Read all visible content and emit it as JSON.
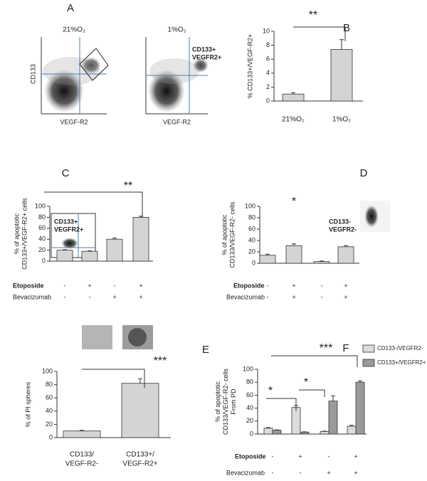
{
  "chart_data": [
    {
      "type": "flow",
      "label": "A",
      "ylabel": "CD133",
      "xlabel": "VEGF-R2",
      "plots": [
        {
          "title": "21%O₂"
        },
        {
          "title": "1%O₂",
          "gate_label": "CD133+\nVEGFR2+"
        }
      ]
    },
    {
      "type": "bar",
      "label": "B",
      "ylabel": "% CD133+/VEGF-R2+",
      "categories": [
        "21%O₂",
        "1%O₂"
      ],
      "series": [
        {
          "values": [
            1,
            7.4
          ],
          "errors": [
            0.2,
            1.4
          ],
          "color": "#d4d4d4"
        }
      ],
      "ylim": [
        0,
        10
      ],
      "yticks": [
        0,
        2,
        4,
        6,
        8,
        10
      ],
      "annotations": [
        "**"
      ]
    },
    {
      "type": "bar",
      "label": "C",
      "ylabel": "% of apoptotic\nCD133+/VEGF-R2+  cells",
      "inset_label": "CD133+\nVEGFR2+",
      "series": [
        {
          "values": [
            20,
            18,
            40,
            80
          ],
          "errors": [
            1,
            1,
            2,
            2
          ],
          "color": "#d4d4d4"
        }
      ],
      "ylim": [
        0,
        100
      ],
      "yticks": [
        0,
        20,
        40,
        60,
        80,
        100
      ],
      "treatments": [
        {
          "name": "Etoposide",
          "signs": [
            "-",
            "+",
            "-",
            "+"
          ]
        },
        {
          "name": "Bevacizumab",
          "signs": [
            "-",
            "-",
            "+",
            "+"
          ]
        }
      ],
      "annotations": [
        "**"
      ]
    },
    {
      "type": "bar",
      "label": "D",
      "ylabel": "% of apoptotic\nCD133/VEGF-R2-  cells",
      "inset_label": "CD133-\nVEGFR2-",
      "series": [
        {
          "values": [
            14,
            31,
            3,
            29
          ],
          "errors": [
            2,
            3,
            1,
            2
          ],
          "color": "#d4d4d4"
        }
      ],
      "ylim": [
        0,
        100
      ],
      "yticks": [
        0,
        20,
        40,
        60,
        80,
        100
      ],
      "treatments": [
        {
          "name": "Etoposide",
          "signs": [
            "-",
            "+",
            "-",
            "+"
          ]
        },
        {
          "name": "Bevacizumab",
          "signs": [
            "-",
            "+",
            "-",
            "+"
          ]
        }
      ],
      "annotations": [
        "*"
      ]
    },
    {
      "type": "bar",
      "label": "E",
      "ylabel": "% of PI  spheres",
      "categories": [
        "CD133/\nVEGF-R2-",
        "CD133+/\nVEGF-R2+"
      ],
      "series": [
        {
          "values": [
            10,
            82
          ],
          "errors": [
            1,
            7
          ],
          "color": "#d4d4d4"
        }
      ],
      "ylim": [
        0,
        100
      ],
      "yticks": [
        0,
        20,
        40,
        60,
        80,
        100
      ],
      "annotations": [
        "***"
      ]
    },
    {
      "type": "bar",
      "label": "F",
      "ylabel": "% of apoptotic\nCD133/VEGF-R2-  cells\nFrom PD",
      "series": [
        {
          "name": "CD133-/VEGFR2-",
          "values": [
            9,
            41,
            4,
            12
          ],
          "errors": [
            1,
            3,
            0.5,
            1.5
          ],
          "color": "#dcdcdc"
        },
        {
          "name": "CD133+/VEGFR2+",
          "values": [
            6,
            3,
            51,
            80
          ],
          "errors": [
            0.5,
            0.5,
            8,
            2
          ],
          "color": "#9a9a9a"
        }
      ],
      "ylim": [
        0,
        100
      ],
      "yticks": [
        0,
        20,
        40,
        60,
        80,
        100
      ],
      "treatments": [
        {
          "name": "Etoposide",
          "signs": [
            "-",
            "+",
            "-",
            "+"
          ]
        },
        {
          "name": "Bevacizumab",
          "signs": [
            "-",
            "-",
            "+",
            "+"
          ]
        }
      ],
      "annotations": [
        "*",
        "*",
        "***"
      ]
    }
  ]
}
